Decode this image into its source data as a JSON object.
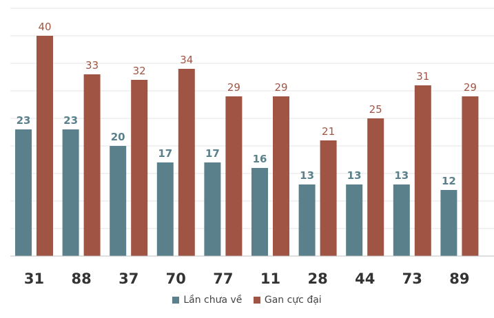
{
  "chart_data": {
    "type": "bar",
    "title": "",
    "xlabel": "",
    "ylabel": "",
    "categories": [
      "31",
      "88",
      "37",
      "70",
      "77",
      "11",
      "28",
      "44",
      "73",
      "89"
    ],
    "series": [
      {
        "name": "Lần chưa về",
        "color": "#5a818b",
        "values": [
          23,
          23,
          20,
          17,
          17,
          16,
          13,
          13,
          13,
          12
        ]
      },
      {
        "name": "Gan cực đại",
        "color": "#a05544",
        "values": [
          40,
          33,
          32,
          34,
          29,
          29,
          21,
          25,
          31,
          29
        ]
      }
    ],
    "ylim": [
      0,
      45
    ],
    "grid": true,
    "legend_position": "bottom-center"
  }
}
